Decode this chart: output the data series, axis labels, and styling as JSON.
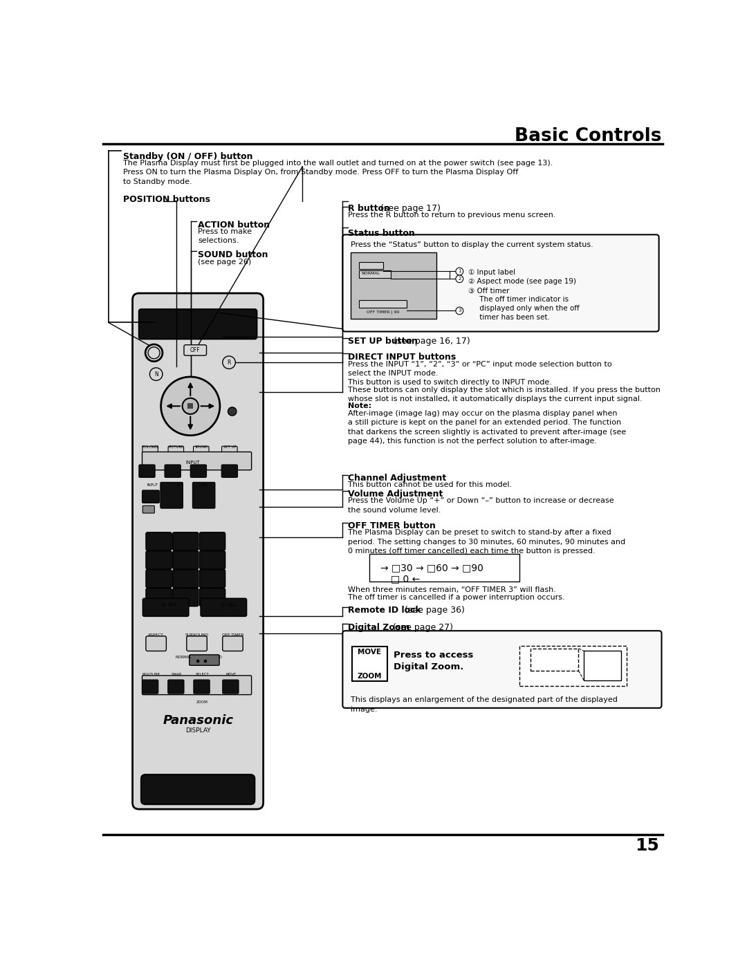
{
  "title": "Basic Controls",
  "page_number": "15",
  "bg_color": "#ffffff",
  "standby_header": "Standby (ON / OFF) button",
  "standby_text": "The Plasma Display must first be plugged into the wall outlet and turned on at the power switch (see page 13).\nPress ON to turn the Plasma Display On, from Standby mode. Press OFF to turn the Plasma Display Off\nto Standby mode.",
  "position_label": "POSITION buttons",
  "action_label": "ACTION button",
  "action_text": "Press to make\nselections.",
  "sound_label": "SOUND button",
  "sound_text": "(see page 26)",
  "r_button_label_bold": "R button",
  "r_button_label_rest": " (see page 17)",
  "r_button_text": "Press the R button to return to previous menu screen.",
  "status_label": "Status button",
  "status_box_text": "Press the “Status” button to display the current system status.",
  "setup_label_bold": "SET UP button",
  "setup_label_rest": " (see page 16, 17)",
  "direct_input_label": "DIRECT INPUT buttons",
  "direct_input_text1": "Press the INPUT “1”, “2”, “3” or “PC” input mode selection button to\nselect the INPUT mode.",
  "direct_input_text2": "This button is used to switch directly to INPUT mode.",
  "direct_input_text3": "These buttons can only display the slot which is installed. If you press the button\nwhose slot is not installed, it automatically displays the current input signal.",
  "direct_note_label": "Note:",
  "direct_note_text": "After-image (image lag) may occur on the plasma display panel when\na still picture is kept on the panel for an extended period. The function\nthat darkens the screen slightly is activated to prevent after-image (see\npage 44), this function is not the perfect solution to after-image.",
  "channel_label": "Channel Adjustment",
  "channel_text": "This button cannot be used for this model.",
  "volume_label": "Volume Adjustment",
  "volume_text": "Press the Volume Up “+” or Down “–” button to increase or decrease\nthe sound volume level.",
  "offtimer_label": "OFF TIMER button",
  "offtimer_text": "The Plasma Display can be preset to switch to stand-by after a fixed\nperiod. The setting changes to 30 minutes, 60 minutes, 90 minutes and\n0 minutes (off timer cancelled) each time the button is pressed.",
  "offtimer_note1": "When three minutes remain, “OFF TIMER 3” will flash.",
  "offtimer_note2": "The off timer is cancelled if a power interruption occurs.",
  "remoteid_bold": "Remote ID lock",
  "remoteid_rest": " (see page 36)",
  "digitalzoom_bold": "Digital Zoom",
  "digitalzoom_rest": " (see page 27)",
  "digitalzoom_press_bold": "Press to access\nDigital Zoom.",
  "dz_bottom": "This displays an enlargement of the designated part of the displayed\nimage.",
  "display_label": "DISPLAY",
  "panasonic_label": "Panasonic"
}
